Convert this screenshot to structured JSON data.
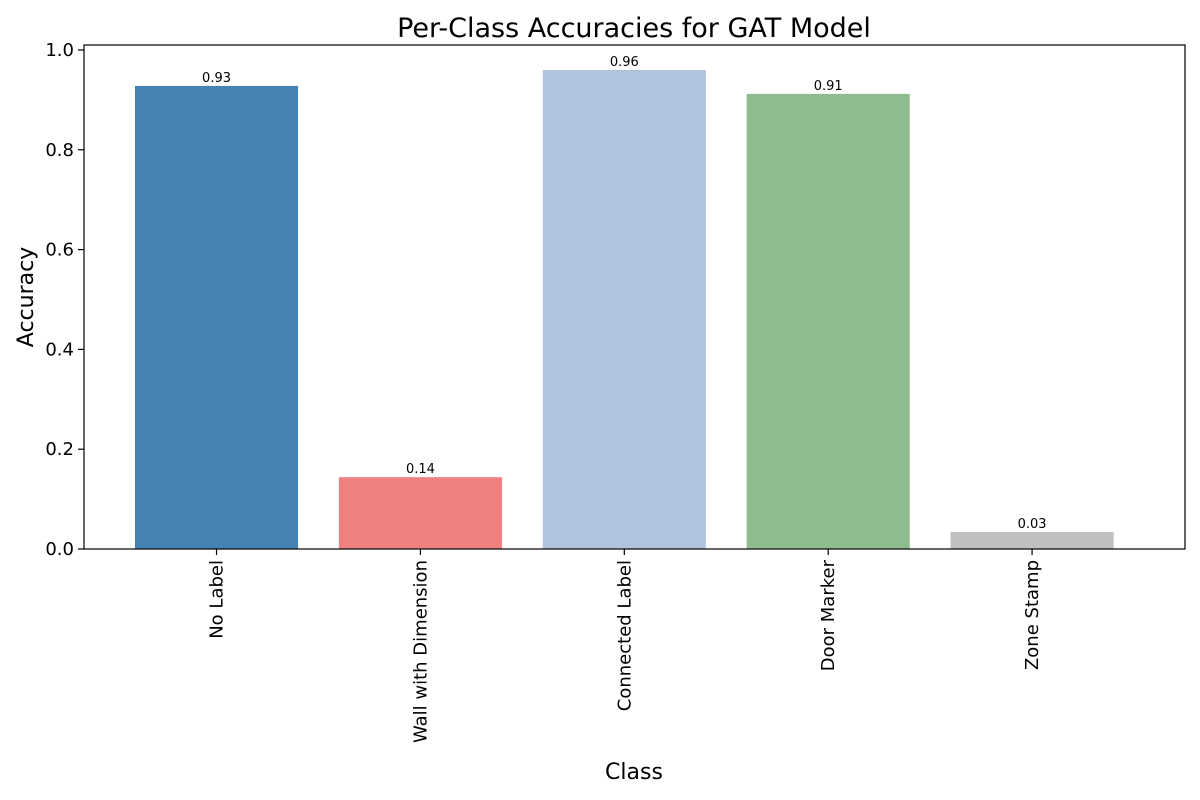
{
  "chart_data": {
    "type": "bar",
    "title": "Per-Class Accuracies for GAT Model",
    "xlabel": "Class",
    "ylabel": "Accuracy",
    "categories": [
      "No Label",
      "Wall with Dimension",
      "Connected Label",
      "Door Marker",
      "Zone Stamp"
    ],
    "values": [
      0.928,
      0.144,
      0.96,
      0.912,
      0.034
    ],
    "value_labels": [
      "0.93",
      "0.14",
      "0.96",
      "0.91",
      "0.03"
    ],
    "colors": [
      "#4682b4",
      "#f08080",
      "#b0c4de",
      "#8fbc8f",
      "#c0c0c0"
    ],
    "ylim": [
      0,
      1.01
    ],
    "yticks": [
      0.0,
      0.2,
      0.4,
      0.6,
      0.8,
      1.0
    ],
    "ytick_labels": [
      "0.0",
      "0.2",
      "0.4",
      "0.6",
      "0.8",
      "1.0"
    ],
    "grid": false,
    "legend": "none",
    "tick_label_rotation": "vertical"
  }
}
